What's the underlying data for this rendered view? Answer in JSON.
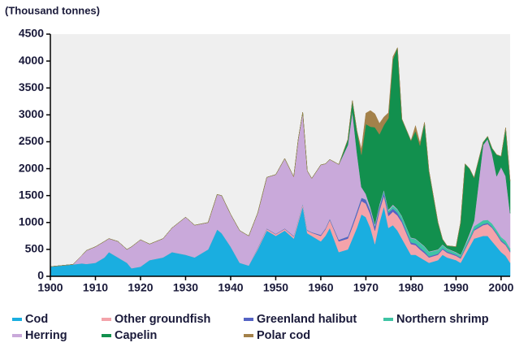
{
  "chart_data": {
    "type": "stacked_area",
    "y_label": "(Thousand tonnes)",
    "x": [
      1900,
      1905,
      1907,
      1908,
      1910,
      1912,
      1913,
      1915,
      1917,
      1918,
      1920,
      1922,
      1925,
      1927,
      1930,
      1932,
      1935,
      1937,
      1938,
      1940,
      1942,
      1944,
      1946,
      1948,
      1950,
      1952,
      1954,
      1955,
      1956,
      1957,
      1958,
      1960,
      1961,
      1962,
      1964,
      1966,
      1967,
      1968,
      1969,
      1970,
      1971,
      1972,
      1973,
      1974,
      1975,
      1976,
      1977,
      1978,
      1980,
      1981,
      1982,
      1983,
      1984,
      1986,
      1987,
      1988,
      1990,
      1991,
      1992,
      1993,
      1994,
      1996,
      1997,
      1998,
      1999,
      2000,
      2001,
      2002
    ],
    "series": [
      {
        "name": "Cod",
        "color": "#1aaee0",
        "values": [
          180,
          220,
          240,
          230,
          250,
          350,
          450,
          350,
          250,
          150,
          180,
          300,
          350,
          450,
          400,
          350,
          500,
          870,
          800,
          550,
          250,
          200,
          500,
          850,
          750,
          850,
          700,
          1000,
          1300,
          800,
          750,
          650,
          750,
          900,
          450,
          500,
          700,
          900,
          1150,
          1100,
          900,
          600,
          1000,
          1300,
          900,
          950,
          850,
          700,
          400,
          400,
          350,
          300,
          250,
          300,
          400,
          350,
          300,
          250,
          400,
          550,
          700,
          750,
          750,
          650,
          550,
          450,
          380,
          250
        ]
      },
      {
        "name": "Other groundfish",
        "color": "#f4a3aa",
        "values": [
          0,
          0,
          0,
          0,
          0,
          0,
          0,
          0,
          0,
          0,
          0,
          0,
          0,
          0,
          0,
          0,
          0,
          0,
          0,
          0,
          0,
          0,
          20,
          30,
          30,
          30,
          40,
          40,
          40,
          50,
          60,
          100,
          120,
          150,
          200,
          200,
          220,
          250,
          250,
          250,
          250,
          250,
          220,
          200,
          220,
          250,
          280,
          300,
          200,
          180,
          150,
          130,
          100,
          100,
          100,
          90,
          80,
          80,
          100,
          120,
          150,
          200,
          220,
          250,
          230,
          200,
          200,
          200
        ]
      },
      {
        "name": "Greenland halibut",
        "color": "#5563c4",
        "values": [
          0,
          0,
          0,
          0,
          0,
          0,
          0,
          0,
          0,
          0,
          0,
          0,
          0,
          0,
          0,
          0,
          0,
          0,
          0,
          0,
          0,
          0,
          10,
          10,
          10,
          10,
          10,
          10,
          10,
          10,
          10,
          20,
          20,
          20,
          30,
          40,
          50,
          60,
          60,
          70,
          70,
          70,
          70,
          60,
          60,
          60,
          50,
          40,
          30,
          30,
          30,
          30,
          20,
          20,
          20,
          20,
          20,
          20,
          20,
          20,
          20,
          20,
          20,
          20,
          20,
          20,
          20,
          20
        ]
      },
      {
        "name": "Northern shrimp",
        "color": "#3fc4a4",
        "values": [
          0,
          0,
          0,
          0,
          0,
          0,
          0,
          0,
          0,
          0,
          0,
          0,
          0,
          0,
          0,
          0,
          0,
          0,
          0,
          0,
          0,
          0,
          0,
          0,
          0,
          0,
          0,
          0,
          0,
          0,
          0,
          0,
          0,
          0,
          0,
          0,
          0,
          0,
          0,
          10,
          10,
          20,
          20,
          30,
          40,
          50,
          60,
          70,
          80,
          80,
          90,
          90,
          80,
          70,
          60,
          50,
          40,
          40,
          50,
          60,
          60,
          70,
          60,
          60,
          60,
          60,
          60,
          50
        ]
      },
      {
        "name": "Herring",
        "color": "#c9a9da",
        "values": [
          0,
          0,
          150,
          250,
          300,
          300,
          250,
          300,
          250,
          400,
          500,
          300,
          350,
          450,
          700,
          600,
          500,
          650,
          700,
          600,
          600,
          550,
          650,
          950,
          1100,
          1300,
          1100,
          1500,
          1700,
          1100,
          1000,
          1300,
          1200,
          1100,
          1400,
          1700,
          2100,
          1100,
          200,
          100,
          50,
          30,
          30,
          20,
          20,
          20,
          10,
          10,
          10,
          10,
          10,
          10,
          10,
          10,
          10,
          10,
          10,
          10,
          20,
          50,
          100,
          1400,
          1500,
          1300,
          1000,
          1300,
          1200,
          650
        ]
      },
      {
        "name": "Capelin",
        "color": "#12904e",
        "values": [
          0,
          0,
          0,
          0,
          0,
          0,
          0,
          0,
          0,
          0,
          0,
          0,
          0,
          0,
          0,
          0,
          0,
          0,
          0,
          0,
          0,
          0,
          0,
          0,
          0,
          0,
          0,
          0,
          0,
          0,
          0,
          0,
          0,
          0,
          0,
          100,
          200,
          400,
          600,
          1300,
          1500,
          1800,
          1300,
          1200,
          1700,
          2700,
          3000,
          1800,
          1800,
          2000,
          1800,
          2300,
          1500,
          500,
          100,
          50,
          100,
          600,
          1500,
          1200,
          800,
          50,
          50,
          100,
          400,
          200,
          900,
          600
        ]
      },
      {
        "name": "Polar cod",
        "color": "#a3814a",
        "values": [
          0,
          0,
          0,
          0,
          0,
          0,
          0,
          0,
          0,
          0,
          0,
          0,
          0,
          0,
          0,
          0,
          0,
          0,
          0,
          0,
          0,
          0,
          0,
          0,
          0,
          0,
          0,
          0,
          0,
          0,
          0,
          0,
          0,
          0,
          0,
          0,
          0,
          0,
          100,
          200,
          300,
          250,
          200,
          150,
          100,
          50,
          0,
          0,
          0,
          100,
          50,
          0,
          0,
          0,
          0,
          0,
          0,
          0,
          0,
          0,
          0,
          0,
          0,
          0,
          0,
          0,
          0,
          0
        ]
      }
    ],
    "xlim": [
      1900,
      2002
    ],
    "xticks": [
      1900,
      1910,
      1920,
      1930,
      1940,
      1950,
      1960,
      1970,
      1980,
      1990,
      2000
    ],
    "ylim": [
      0,
      4500
    ],
    "yticks": [
      0,
      500,
      1000,
      1500,
      2000,
      2500,
      3000,
      3500,
      4000,
      4500
    ],
    "grid": false
  }
}
